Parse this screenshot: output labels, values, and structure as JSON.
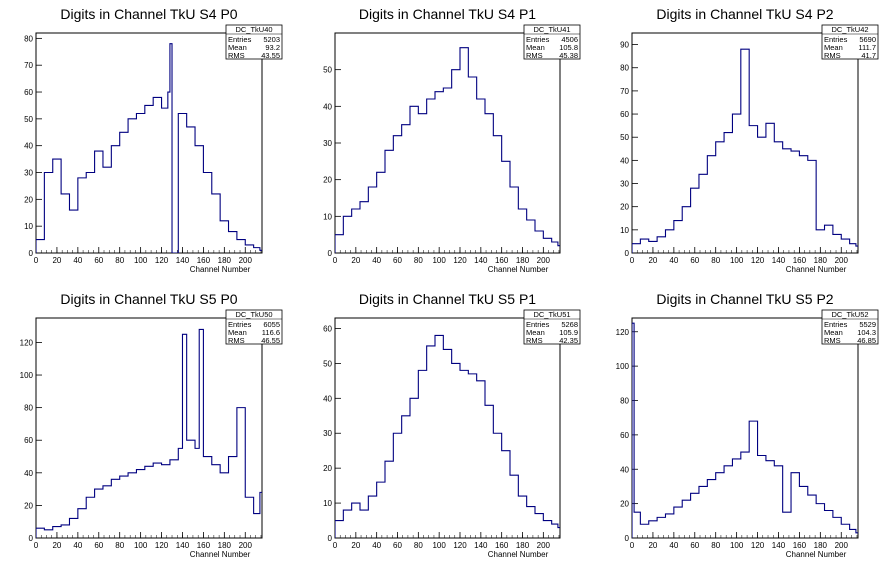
{
  "page": {
    "background": "#ffffff",
    "line_color": "#000080"
  },
  "chart_data": [
    {
      "type": "histogram",
      "title": "Digits in Channel TkU S4 P0",
      "xlabel": "Channel Number",
      "ylabel": "",
      "xlim": [
        0,
        216
      ],
      "ylim": [
        0,
        82
      ],
      "xticks": [
        0,
        20,
        40,
        60,
        80,
        100,
        120,
        140,
        160,
        180,
        200
      ],
      "yticks": [
        0,
        10,
        20,
        30,
        40,
        50,
        60,
        70,
        80
      ],
      "stats": {
        "name": "DC_TkU40",
        "entries": "5203",
        "mean": "93.2",
        "rms": "43.55"
      },
      "x": [
        0,
        8,
        16,
        24,
        32,
        40,
        48,
        56,
        64,
        72,
        80,
        88,
        96,
        104,
        112,
        120,
        126,
        128,
        130,
        136,
        144,
        152,
        160,
        168,
        176,
        184,
        192,
        200,
        208,
        214
      ],
      "values": [
        5,
        30,
        35,
        22,
        16,
        28,
        30,
        38,
        32,
        40,
        45,
        50,
        52,
        55,
        58,
        54,
        60,
        78,
        0,
        52,
        47,
        40,
        30,
        22,
        12,
        8,
        5,
        3,
        2,
        1
      ]
    },
    {
      "type": "histogram",
      "title": "Digits in Channel TkU S4 P1",
      "xlabel": "Channel Number",
      "ylabel": "",
      "xlim": [
        0,
        216
      ],
      "ylim": [
        0,
        60
      ],
      "xticks": [
        0,
        20,
        40,
        60,
        80,
        100,
        120,
        140,
        160,
        180,
        200
      ],
      "yticks": [
        0,
        10,
        20,
        30,
        40,
        50
      ],
      "stats": {
        "name": "DC_TkU41",
        "entries": "4506",
        "mean": "105.8",
        "rms": "45.38"
      },
      "x": [
        0,
        8,
        16,
        24,
        32,
        40,
        48,
        56,
        64,
        72,
        80,
        88,
        96,
        104,
        112,
        120,
        128,
        136,
        144,
        152,
        160,
        168,
        176,
        184,
        192,
        200,
        208,
        214
      ],
      "values": [
        5,
        10,
        12,
        14,
        18,
        22,
        28,
        32,
        35,
        40,
        38,
        42,
        44,
        45,
        50,
        56,
        48,
        42,
        38,
        32,
        25,
        18,
        12,
        9,
        6,
        4,
        3,
        2
      ]
    },
    {
      "type": "histogram",
      "title": "Digits in Channel TkU S4 P2",
      "xlabel": "Channel Number",
      "ylabel": "",
      "xlim": [
        0,
        216
      ],
      "ylim": [
        0,
        95
      ],
      "xticks": [
        0,
        20,
        40,
        60,
        80,
        100,
        120,
        140,
        160,
        180,
        200
      ],
      "yticks": [
        0,
        10,
        20,
        30,
        40,
        50,
        60,
        70,
        80,
        90
      ],
      "stats": {
        "name": "DC_TkU42",
        "entries": "5690",
        "mean": "111.7",
        "rms": "41.7"
      },
      "x": [
        0,
        8,
        16,
        24,
        32,
        40,
        48,
        56,
        64,
        72,
        80,
        88,
        96,
        104,
        112,
        120,
        128,
        136,
        144,
        152,
        160,
        168,
        176,
        184,
        192,
        200,
        208,
        214
      ],
      "values": [
        4,
        6,
        5,
        7,
        10,
        14,
        20,
        28,
        34,
        42,
        48,
        52,
        60,
        88,
        55,
        50,
        56,
        48,
        45,
        44,
        42,
        40,
        10,
        12,
        8,
        6,
        4,
        3
      ]
    },
    {
      "type": "histogram",
      "title": "Digits in Channel TkU S5 P0",
      "xlabel": "Channel Number",
      "ylabel": "",
      "xlim": [
        0,
        216
      ],
      "ylim": [
        0,
        135
      ],
      "xticks": [
        0,
        20,
        40,
        60,
        80,
        100,
        120,
        140,
        160,
        180,
        200
      ],
      "yticks": [
        0,
        20,
        40,
        60,
        80,
        100,
        120
      ],
      "stats": {
        "name": "DC_TkU50",
        "entries": "6055",
        "mean": "116.6",
        "rms": "46.55"
      },
      "x": [
        0,
        8,
        16,
        24,
        32,
        40,
        48,
        56,
        64,
        72,
        80,
        88,
        96,
        104,
        112,
        120,
        128,
        136,
        140,
        144,
        152,
        156,
        160,
        168,
        176,
        184,
        192,
        200,
        208,
        214
      ],
      "values": [
        6,
        5,
        7,
        8,
        12,
        18,
        25,
        30,
        32,
        36,
        38,
        40,
        42,
        44,
        46,
        45,
        48,
        55,
        125,
        60,
        55,
        128,
        50,
        45,
        40,
        50,
        80,
        25,
        15,
        28
      ]
    },
    {
      "type": "histogram",
      "title": "Digits in Channel TkU S5 P1",
      "xlabel": "Channel Number",
      "ylabel": "",
      "xlim": [
        0,
        216
      ],
      "ylim": [
        0,
        63
      ],
      "xticks": [
        0,
        20,
        40,
        60,
        80,
        100,
        120,
        140,
        160,
        180,
        200
      ],
      "yticks": [
        0,
        10,
        20,
        30,
        40,
        50,
        60
      ],
      "stats": {
        "name": "DC_TkU51",
        "entries": "5268",
        "mean": "105.9",
        "rms": "42.35"
      },
      "x": [
        0,
        8,
        16,
        24,
        32,
        40,
        48,
        56,
        64,
        72,
        80,
        88,
        96,
        104,
        112,
        120,
        128,
        136,
        144,
        152,
        160,
        168,
        176,
        184,
        192,
        200,
        208,
        214
      ],
      "values": [
        5,
        8,
        10,
        8,
        12,
        16,
        22,
        30,
        35,
        40,
        48,
        55,
        58,
        54,
        50,
        48,
        47,
        45,
        38,
        30,
        25,
        18,
        12,
        9,
        7,
        5,
        4,
        3
      ]
    },
    {
      "type": "histogram",
      "title": "Digits in Channel TkU S5 P2",
      "xlabel": "Channel Number",
      "ylabel": "",
      "xlim": [
        0,
        216
      ],
      "ylim": [
        0,
        128
      ],
      "xticks": [
        0,
        20,
        40,
        60,
        80,
        100,
        120,
        140,
        160,
        180,
        200
      ],
      "yticks": [
        0,
        20,
        40,
        60,
        80,
        100,
        120
      ],
      "stats": {
        "name": "DC_TkU52",
        "entries": "5529",
        "mean": "104.3",
        "rms": "46.85"
      },
      "x": [
        0,
        2,
        8,
        16,
        24,
        32,
        40,
        48,
        56,
        64,
        72,
        80,
        88,
        96,
        104,
        112,
        120,
        128,
        136,
        144,
        152,
        160,
        168,
        176,
        184,
        192,
        200,
        208,
        214
      ],
      "values": [
        125,
        15,
        8,
        10,
        12,
        14,
        18,
        22,
        26,
        30,
        34,
        38,
        42,
        46,
        50,
        68,
        48,
        45,
        42,
        15,
        38,
        30,
        25,
        20,
        16,
        12,
        8,
        5,
        3
      ]
    }
  ]
}
